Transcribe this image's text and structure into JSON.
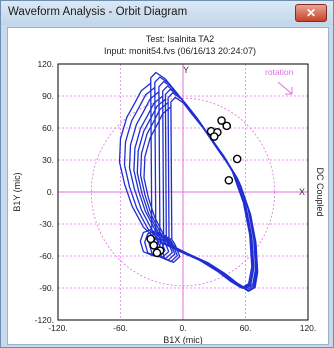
{
  "window": {
    "title": "Waveform Analysis - Orbit Diagram",
    "close_label": "✕"
  },
  "header": {
    "test_line": "Test: Isalnita TA2",
    "input_line": "Input: monit54.fvs (06/16/13 20:24:07)"
  },
  "chart_data": {
    "type": "line",
    "title": "",
    "xlabel": "B1X (mic)",
    "ylabel": "B1Y (mic)",
    "right_label": "DC Coupled",
    "xlim": [
      -120,
      120
    ],
    "ylim": [
      -120,
      120
    ],
    "x_ticks": [
      -120,
      -60,
      0,
      60,
      120
    ],
    "x_tick_labels": [
      "-120.",
      "-60.",
      "0.",
      "60.",
      "120."
    ],
    "y_ticks": [
      120,
      90,
      60,
      30,
      0,
      -30,
      -60,
      -90,
      -120
    ],
    "y_tick_labels": [
      "120.",
      "90.",
      "60.",
      "30.",
      "0.",
      "-30.",
      "-60.",
      "-90.",
      "-120."
    ],
    "grid": true,
    "axis_x_label": "X",
    "axis_y_label": "Y",
    "rotation_label": "rotation",
    "reference_circle_radius": 88,
    "colors": {
      "orbit": "#1f2fd0",
      "grid": "#e070e0",
      "axes": "#e070e0",
      "frame": "#000000"
    },
    "orbit_base": {
      "x": [
        -31,
        -40,
        -46,
        -54,
        -60,
        -61,
        -56,
        -49,
        -38,
        -24,
        -5,
        16,
        34,
        46,
        56,
        63,
        66,
        64,
        58,
        47,
        33,
        18,
        5,
        -8,
        -17,
        -26,
        -31,
        -30,
        -26,
        -21,
        -28,
        -38,
        -41,
        -38,
        -30,
        -31
      ],
      "y": [
        102,
        95,
        84,
        70,
        50,
        28,
        7,
        -13,
        -33,
        -46,
        -55,
        -64,
        -75,
        -84,
        -90,
        -86,
        -70,
        -40,
        -10,
        20,
        42,
        62,
        80,
        95,
        106,
        112,
        107,
        -36,
        -42,
        -54,
        -60,
        -56,
        -46,
        -38,
        -35,
        102
      ]
    },
    "orbits": [
      {
        "dx": 0,
        "dy": 0,
        "sx": 1.0,
        "sy": 1.0
      },
      {
        "dx": 3,
        "dy": -2,
        "sx": 0.97,
        "sy": 0.98
      },
      {
        "dx": 6,
        "dy": -4,
        "sx": 0.94,
        "sy": 0.96
      },
      {
        "dx": 9,
        "dy": -6,
        "sx": 0.92,
        "sy": 0.94
      },
      {
        "dx": 11,
        "dy": -8,
        "sx": 0.9,
        "sy": 0.93
      },
      {
        "dx": 13,
        "dy": -10,
        "sx": 0.88,
        "sy": 0.92
      },
      {
        "dx": 15,
        "dy": -12,
        "sx": 0.86,
        "sy": 0.9
      }
    ],
    "markers": {
      "x": [
        37,
        42,
        27,
        33,
        30,
        52,
        44,
        -31,
        -28,
        -22,
        -25
      ],
      "y": [
        67,
        62,
        57,
        56,
        52,
        31,
        11,
        -44,
        -50,
        -55,
        -57
      ]
    }
  }
}
